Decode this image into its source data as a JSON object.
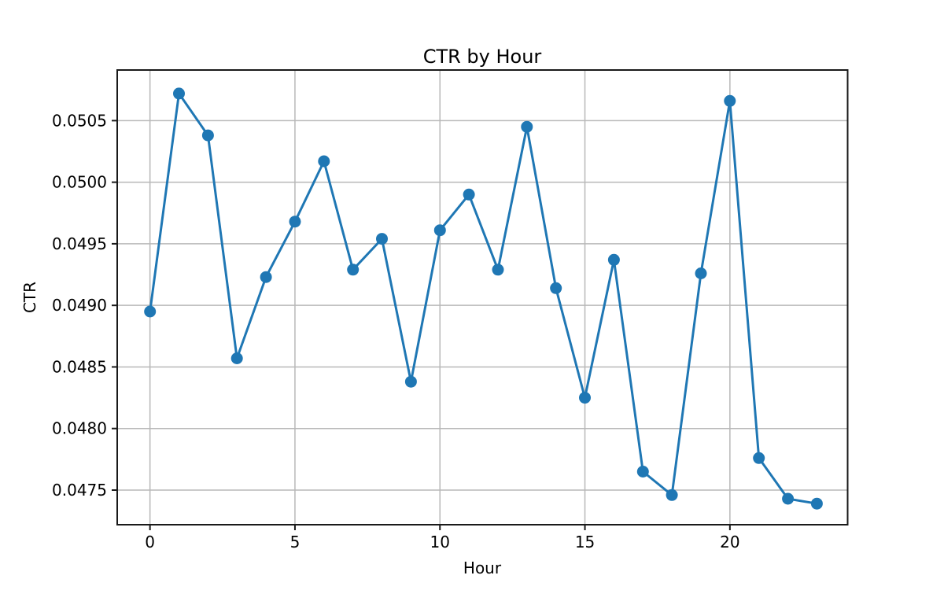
{
  "figure": {
    "background": "#ffffff"
  },
  "chart_data": {
    "type": "line",
    "title": "CTR by Hour",
    "xlabel": "Hour",
    "ylabel": "CTR",
    "series": [
      {
        "name": "CTR",
        "x": [
          0,
          1,
          2,
          3,
          4,
          5,
          6,
          7,
          8,
          9,
          10,
          11,
          12,
          13,
          14,
          15,
          16,
          17,
          18,
          19,
          20,
          21,
          22,
          23
        ],
        "values": [
          0.04895,
          0.05072,
          0.05038,
          0.04857,
          0.04923,
          0.04968,
          0.05017,
          0.04929,
          0.04954,
          0.04838,
          0.04961,
          0.0499,
          0.04929,
          0.05045,
          0.04914,
          0.04825,
          0.04937,
          0.04765,
          0.04746,
          0.04926,
          0.05066,
          0.04776,
          0.04743,
          0.04739
        ],
        "color": "#1f77b4",
        "marker": "circle"
      }
    ],
    "xticks": [
      0,
      5,
      10,
      15,
      20
    ],
    "xtick_labels": [
      "0",
      "5",
      "10",
      "15",
      "20"
    ],
    "yticks": [
      0.0475,
      0.048,
      0.0485,
      0.049,
      0.0495,
      0.05,
      0.0505
    ],
    "ytick_labels": [
      "0.0475",
      "0.0480",
      "0.0485",
      "0.0490",
      "0.0495",
      "0.0500",
      "0.0505"
    ],
    "xlim": [
      -1.13,
      24.06
    ],
    "ylim": [
      0.047219,
      0.050911
    ],
    "grid": true,
    "legend_position": "none",
    "colors": {
      "line": "#1f77b4",
      "grid": "#b8b8b8",
      "spine": "#1a1a1a",
      "text": "#000000"
    }
  }
}
